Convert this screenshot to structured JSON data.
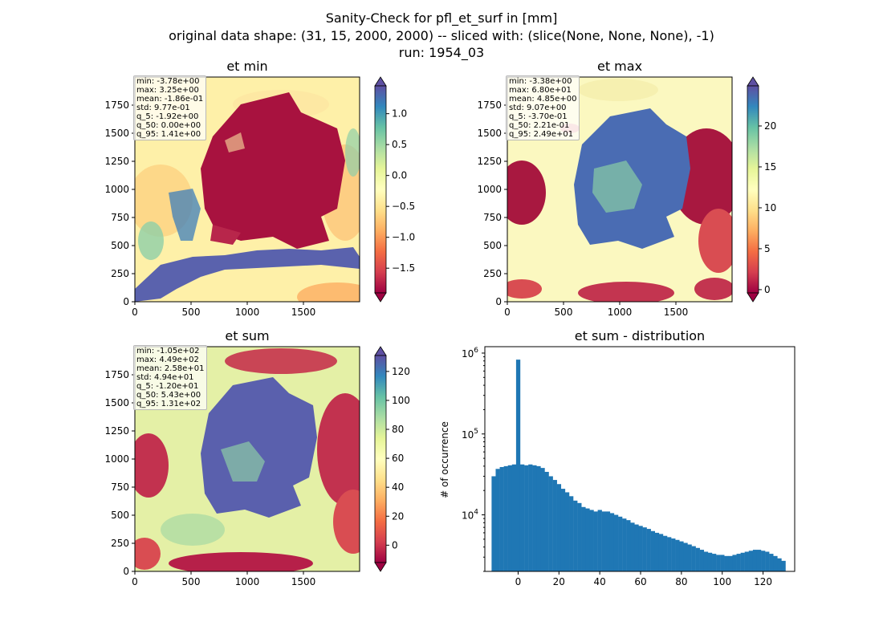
{
  "figure": {
    "title_line1": "Sanity-Check for pfl_et_surf in [mm]",
    "title_line2": "original data shape: (31, 15, 2000, 2000) -- sliced with: (slice(None, None, None), -1)",
    "title_line3": "run: 1954_03"
  },
  "chart_data": [
    {
      "type": "heatmap",
      "title": "et min",
      "colormap": "Spectral",
      "xlim": [
        0,
        2000
      ],
      "ylim": [
        0,
        2000
      ],
      "x_ticks": [
        0,
        500,
        1000,
        1500
      ],
      "y_ticks": [
        0,
        250,
        500,
        750,
        1000,
        1250,
        1500,
        1750
      ],
      "colorbar_range": [
        -1.9,
        1.45
      ],
      "colorbar_ticks": [
        "1.0",
        "0.5",
        "0.0",
        "−0.5",
        "−1.0",
        "−1.5"
      ],
      "colorbar_tick_values": [
        1.0,
        0.5,
        0.0,
        -0.5,
        -1.0,
        -1.5
      ],
      "stats": [
        "min: -3.78e+00",
        "max: 3.25e+00",
        "mean: -1.86e-01",
        "std: 9.77e-01",
        "q_5: -1.92e+00",
        "q_50: 0.00e+00",
        "q_95: 1.41e+00"
      ]
    },
    {
      "type": "heatmap",
      "title": "et max",
      "colormap": "Spectral",
      "xlim": [
        0,
        2000
      ],
      "ylim": [
        0,
        2000
      ],
      "x_ticks": [
        0,
        500,
        1000,
        1500
      ],
      "y_ticks": [
        0,
        250,
        500,
        750,
        1000,
        1250,
        1500,
        1750
      ],
      "colorbar_range": [
        -0.4,
        24.9
      ],
      "colorbar_ticks": [
        "20",
        "15",
        "10",
        "5",
        "0"
      ],
      "colorbar_tick_values": [
        20,
        15,
        10,
        5,
        0
      ],
      "stats": [
        "min: -3.38e+00",
        "max: 6.80e+01",
        "mean: 4.85e+00",
        "std: 9.07e+00",
        "q_5: -3.70e-01",
        "q_50: 2.21e-01",
        "q_95: 2.49e+01"
      ]
    },
    {
      "type": "heatmap",
      "title": "et sum",
      "colormap": "Spectral",
      "xlim": [
        0,
        2000
      ],
      "ylim": [
        0,
        2000
      ],
      "x_ticks": [
        0,
        500,
        1000,
        1500
      ],
      "y_ticks": [
        0,
        250,
        500,
        750,
        1000,
        1250,
        1500,
        1750
      ],
      "colorbar_range": [
        -12,
        131
      ],
      "colorbar_ticks": [
        "120",
        "100",
        "80",
        "60",
        "40",
        "20",
        "0"
      ],
      "colorbar_tick_values": [
        120,
        100,
        80,
        60,
        40,
        20,
        0
      ],
      "stats": [
        "min: -1.05e+02",
        "max: 4.49e+02",
        "mean: 2.58e+01",
        "std: 4.94e+01",
        "q_5: -1.20e+01",
        "q_50: 5.43e+00",
        "q_95: 1.31e+02"
      ]
    },
    {
      "type": "bar",
      "title": "et sum - distribution",
      "ylabel": "# of occurrence",
      "xlabel": "",
      "yscale": "log",
      "xlim": [
        -16.3,
        135.5
      ],
      "ylim": [
        2000,
        1200000
      ],
      "x_ticks": [
        0,
        20,
        40,
        60,
        80,
        100,
        120
      ],
      "y_ticks": [
        10000,
        100000,
        1000000
      ],
      "y_tick_labels": [
        {
          "base": "10",
          "exp": "4"
        },
        {
          "base": "10",
          "exp": "5"
        },
        {
          "base": "10",
          "exp": "6"
        }
      ],
      "color": "#1f77b4",
      "bins": [
        {
          "x": -12,
          "y": 30000
        },
        {
          "x": -10,
          "y": 37000
        },
        {
          "x": -8,
          "y": 39000
        },
        {
          "x": -6,
          "y": 40000
        },
        {
          "x": -4,
          "y": 41000
        },
        {
          "x": -2,
          "y": 42000
        },
        {
          "x": 0,
          "y": 830000
        },
        {
          "x": 2,
          "y": 42000
        },
        {
          "x": 4,
          "y": 41000
        },
        {
          "x": 6,
          "y": 42000
        },
        {
          "x": 8,
          "y": 41000
        },
        {
          "x": 10,
          "y": 40000
        },
        {
          "x": 12,
          "y": 38000
        },
        {
          "x": 14,
          "y": 34000
        },
        {
          "x": 16,
          "y": 30000
        },
        {
          "x": 18,
          "y": 27000
        },
        {
          "x": 20,
          "y": 24000
        },
        {
          "x": 22,
          "y": 21000
        },
        {
          "x": 24,
          "y": 19000
        },
        {
          "x": 26,
          "y": 17000
        },
        {
          "x": 28,
          "y": 15000
        },
        {
          "x": 30,
          "y": 14000
        },
        {
          "x": 32,
          "y": 12500
        },
        {
          "x": 34,
          "y": 12000
        },
        {
          "x": 36,
          "y": 11500
        },
        {
          "x": 38,
          "y": 11000
        },
        {
          "x": 40,
          "y": 11500
        },
        {
          "x": 42,
          "y": 11000
        },
        {
          "x": 44,
          "y": 11000
        },
        {
          "x": 46,
          "y": 10500
        },
        {
          "x": 48,
          "y": 10000
        },
        {
          "x": 50,
          "y": 9500
        },
        {
          "x": 52,
          "y": 9000
        },
        {
          "x": 54,
          "y": 8600
        },
        {
          "x": 56,
          "y": 8000
        },
        {
          "x": 58,
          "y": 7600
        },
        {
          "x": 60,
          "y": 7300
        },
        {
          "x": 62,
          "y": 7000
        },
        {
          "x": 64,
          "y": 6700
        },
        {
          "x": 66,
          "y": 6300
        },
        {
          "x": 68,
          "y": 6000
        },
        {
          "x": 70,
          "y": 5800
        },
        {
          "x": 72,
          "y": 5500
        },
        {
          "x": 74,
          "y": 5300
        },
        {
          "x": 76,
          "y": 5100
        },
        {
          "x": 78,
          "y": 4900
        },
        {
          "x": 80,
          "y": 4700
        },
        {
          "x": 82,
          "y": 4500
        },
        {
          "x": 84,
          "y": 4300
        },
        {
          "x": 86,
          "y": 4100
        },
        {
          "x": 88,
          "y": 3900
        },
        {
          "x": 90,
          "y": 3700
        },
        {
          "x": 92,
          "y": 3500
        },
        {
          "x": 94,
          "y": 3400
        },
        {
          "x": 96,
          "y": 3300
        },
        {
          "x": 98,
          "y": 3200
        },
        {
          "x": 100,
          "y": 3200
        },
        {
          "x": 102,
          "y": 3100
        },
        {
          "x": 104,
          "y": 3100
        },
        {
          "x": 106,
          "y": 3200
        },
        {
          "x": 108,
          "y": 3300
        },
        {
          "x": 110,
          "y": 3400
        },
        {
          "x": 112,
          "y": 3500
        },
        {
          "x": 114,
          "y": 3600
        },
        {
          "x": 116,
          "y": 3700
        },
        {
          "x": 118,
          "y": 3700
        },
        {
          "x": 120,
          "y": 3600
        },
        {
          "x": 122,
          "y": 3500
        },
        {
          "x": 124,
          "y": 3300
        },
        {
          "x": 126,
          "y": 3100
        },
        {
          "x": 128,
          "y": 2900
        },
        {
          "x": 130,
          "y": 2700
        }
      ]
    }
  ]
}
